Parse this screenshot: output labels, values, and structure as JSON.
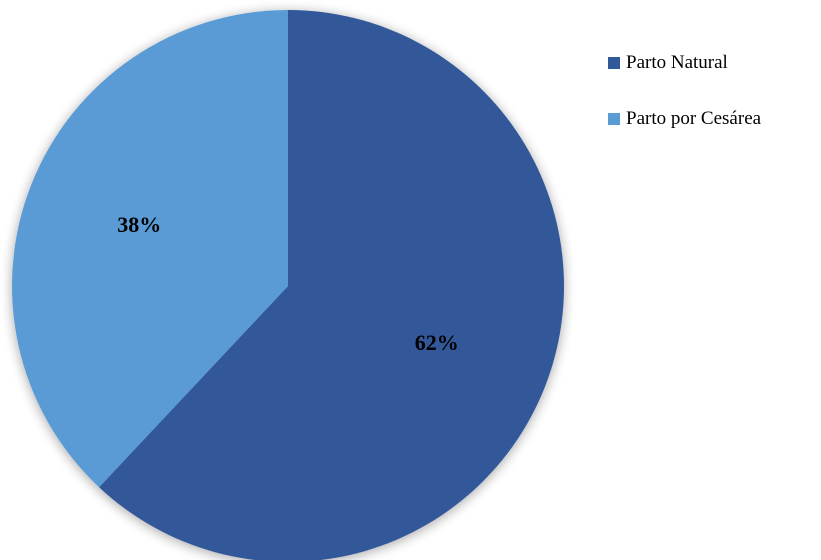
{
  "chart_data": {
    "type": "pie",
    "title": "",
    "slices": [
      {
        "label": "Parto Natural",
        "value": 62,
        "display": "62%",
        "color": "#31589a"
      },
      {
        "label": "Parto por Cesárea",
        "value": 38,
        "display": "38%",
        "color": "#5a9bd5"
      }
    ],
    "legend_position": "top-right",
    "start_angle": "12 o'clock",
    "direction": "clockwise"
  }
}
